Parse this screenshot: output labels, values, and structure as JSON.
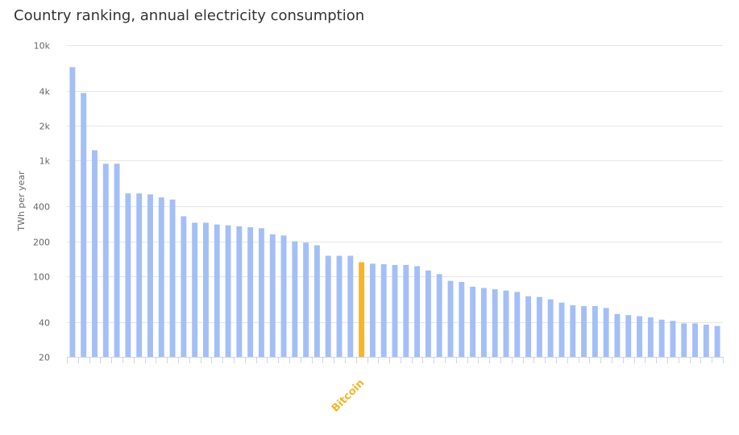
{
  "chart_data": {
    "type": "bar",
    "title": "Country ranking, annual electricity consumption",
    "ylabel": "TWh per year",
    "xlabel": "",
    "yscale": "log",
    "ylim": [
      20,
      10000
    ],
    "yticks": [
      20,
      40,
      100,
      200,
      400,
      1000,
      2000,
      4000,
      10000
    ],
    "ytick_labels": [
      "20",
      "40",
      "100",
      "200",
      "400",
      "1k",
      "2k",
      "4k",
      "10k"
    ],
    "grid": true,
    "legend": "none",
    "highlight_index": 26,
    "highlight_label": "Bitcoin",
    "values": [
      6450,
      3850,
      1230,
      940,
      940,
      520,
      520,
      510,
      480,
      460,
      330,
      290,
      290,
      280,
      275,
      270,
      265,
      260,
      230,
      225,
      200,
      195,
      185,
      150,
      150,
      150,
      132,
      128,
      127,
      125,
      125,
      122,
      112,
      104,
      91,
      89,
      81,
      79,
      77,
      75,
      73,
      67,
      66,
      63,
      59,
      56,
      55,
      55,
      53,
      47,
      46,
      45,
      44,
      42,
      41,
      39,
      39,
      38,
      37
    ]
  },
  "colors": {
    "bar": "#a4bff7",
    "highlight": "#f7b42c",
    "grid": "#e6e6e6",
    "axis": "#ccd6eb"
  }
}
